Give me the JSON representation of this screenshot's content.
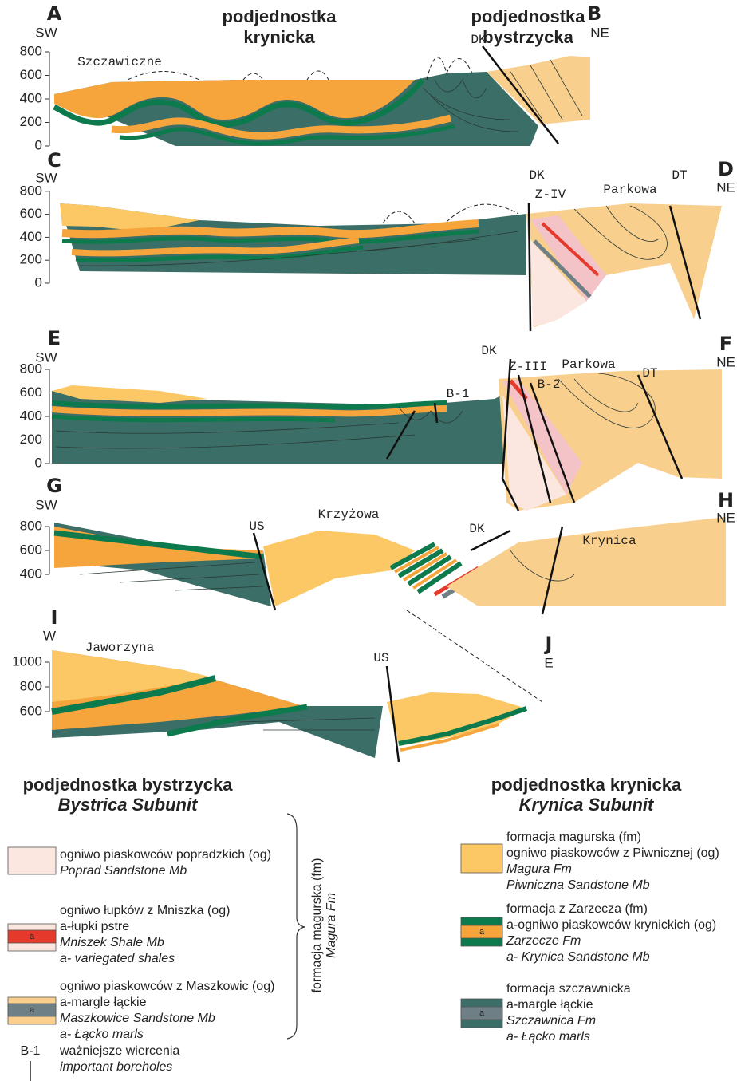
{
  "sections": [
    {
      "start": "A",
      "start_dir": "SW",
      "end": "B",
      "end_dir": "NE",
      "ticks": [
        800,
        600,
        400,
        200,
        0
      ],
      "labels": [
        "podjednostka",
        "krynicka",
        "podjednostka",
        "bystrzycka",
        "DK",
        "Szczawiczne"
      ]
    },
    {
      "start": "C",
      "start_dir": "SW",
      "end": "D",
      "end_dir": "NE",
      "ticks": [
        800,
        600,
        400,
        200,
        0
      ],
      "labels": [
        "DK",
        "Z-IV",
        "Parkowa",
        "DT"
      ]
    },
    {
      "start": "E",
      "start_dir": "SW",
      "end": "F",
      "end_dir": "NE",
      "ticks": [
        800,
        600,
        400,
        200,
        0
      ],
      "labels": [
        "DK",
        "Z-III",
        "Parkowa",
        "B-2",
        "DT",
        "B-1"
      ]
    },
    {
      "start": "G",
      "start_dir": "SW",
      "end": "H",
      "end_dir": "NE",
      "ticks": [
        800,
        600,
        400
      ],
      "labels": [
        "US",
        "Krzyżowa",
        "DK",
        "Krynica"
      ]
    },
    {
      "start": "I",
      "start_dir": "W",
      "end": "J",
      "end_dir": "E",
      "ticks": [
        1000,
        800,
        600
      ],
      "labels": [
        "Jaworzyna",
        "US"
      ]
    }
  ],
  "legend": {
    "bystrica": {
      "title": "podjednostka bystrzycka",
      "subtitle": "Bystrica Subunit",
      "items": [
        {
          "lines": [
            "ogniwo piaskowców popradzkich (og)",
            "Poprad Sandstone Mb"
          ]
        },
        {
          "swatch_label": "a",
          "lines": [
            "ogniwo łupków z Mniszka (og)",
            "a-łupki pstre",
            "Mniszek Shale Mb",
            "a- variegated shales"
          ]
        },
        {
          "swatch_label": "a",
          "lines": [
            "ogniwo piaskowców z Maszkowic (og)",
            "a-margle łąckie",
            "Maszkowice Sandstone Mb",
            "a- Łącko marls"
          ]
        }
      ],
      "brace": [
        "formacja magurska (fm)",
        "Magura Fm"
      ],
      "borehole": {
        "symbol": "B-1",
        "lines": [
          "ważniejsze wiercenia",
          "important boreholes"
        ]
      }
    },
    "krynica": {
      "title": "podjednostka krynicka",
      "subtitle": "Krynica Subunit",
      "items": [
        {
          "lines": [
            "formacja magurska (fm)",
            "ogniwo piaskowców z Piwnicznej (og)",
            "Magura Fm",
            "Piwniczna Sandstone Mb"
          ]
        },
        {
          "swatch_label": "a",
          "lines": [
            "formacja z Zarzecza (fm)",
            "a-ogniwo piaskowców krynickich (og)",
            "Zarzecze Fm",
            "a- Krynica Sandstone Mb"
          ]
        },
        {
          "swatch_label": "a",
          "lines": [
            "formacja szczawnicka",
            "a-margle łąckie",
            "Szczawnica Fm",
            "a- Łącko marls"
          ]
        }
      ]
    }
  }
}
